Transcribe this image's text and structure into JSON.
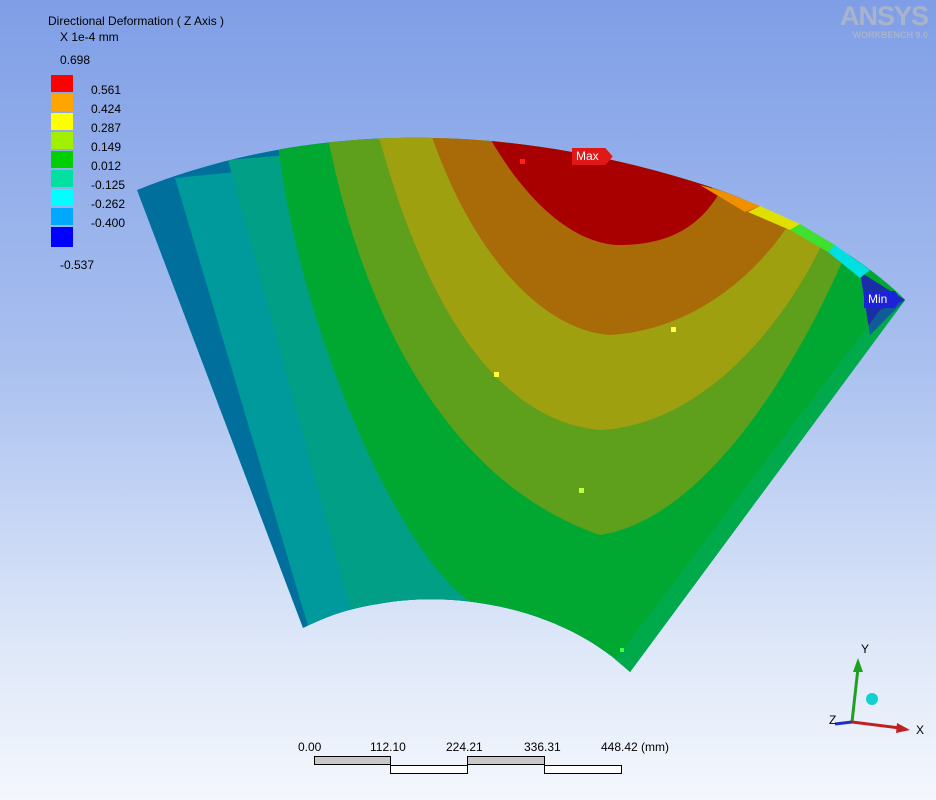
{
  "legend": {
    "title": "Directional Deformation ( Z Axis )",
    "units": "X 1e-4 mm",
    "max_value": "0.698",
    "min_value": "-0.537",
    "bands": [
      {
        "color": "#ff0000",
        "label": "0.561"
      },
      {
        "color": "#ffa500",
        "label": "0.424"
      },
      {
        "color": "#ffff00",
        "label": "0.287"
      },
      {
        "color": "#a0f000",
        "label": "0.149"
      },
      {
        "color": "#00d000",
        "label": "0.012"
      },
      {
        "color": "#00e0a0",
        "label": "-0.125"
      },
      {
        "color": "#00ffff",
        "label": "-0.262"
      },
      {
        "color": "#00a8ff",
        "label": "-0.400"
      },
      {
        "color": "#0000ff",
        "label": ""
      }
    ]
  },
  "logo": {
    "brand": "ANSYS",
    "product": "WORKBENCH 9.0"
  },
  "probes": {
    "max_label": "Max",
    "min_label": "Min"
  },
  "scale_bar": {
    "ticks": [
      "0.00",
      "112.10",
      "224.21",
      "336.31",
      "448.42 (mm)"
    ]
  },
  "triad": {
    "x_label": "X",
    "y_label": "Y",
    "z_label": "Z"
  }
}
